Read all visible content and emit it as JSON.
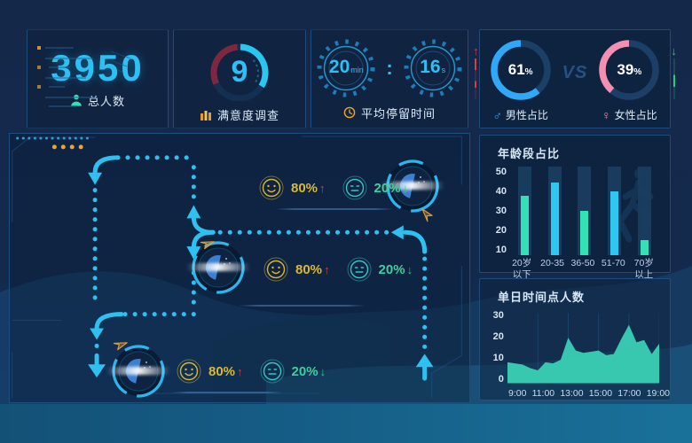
{
  "colors": {
    "accent_cyan": "#2cc0f4",
    "teal_green": "#35e0b5",
    "bar_blue": "#2fc6f2",
    "yellow": "#d9b832",
    "orange": "#f0a32f",
    "red": "#e23b3b",
    "green": "#2ecc71",
    "male_blue": "#2fa8f8",
    "female_pink": "#f48fb1",
    "area_fill": "#3ad0b5"
  },
  "kpi": {
    "total": {
      "value": "3950",
      "label": "总人数"
    },
    "satisfaction": {
      "value": "9",
      "label": "满意度调查"
    },
    "stay": {
      "min_value": "20",
      "min_unit": "min",
      "colon": ":",
      "sec_value": "16",
      "sec_unit": "s",
      "label": "平均停留时间"
    },
    "gender": {
      "male_value": 61,
      "male_display": "61",
      "female_value": 39,
      "female_display": "39",
      "percent": "%",
      "vs": "VS",
      "male_symbol": "♂",
      "female_symbol": "♀",
      "male_label": "男性占比",
      "female_label": "女性占比",
      "male_trend": "↑",
      "female_trend": "↓"
    }
  },
  "flow": {
    "rows": [
      {
        "happy_pct": "80%",
        "happy_trend": "↑",
        "calm_pct": "20%",
        "calm_trend": "↓"
      },
      {
        "happy_pct": "80%",
        "happy_trend": "↑",
        "calm_pct": "20%",
        "calm_trend": "↓"
      },
      {
        "happy_pct": "80%",
        "happy_trend": "↑",
        "calm_pct": "20%",
        "calm_trend": "↓"
      }
    ]
  },
  "chart_data": [
    {
      "type": "bar",
      "title": "年龄段占比",
      "categories": [
        "20岁\n以下",
        "20-35",
        "36-50",
        "51-70",
        "70岁\n以上"
      ],
      "values": [
        37,
        43,
        30,
        39,
        17
      ],
      "bar_colors": [
        "#35e0b5",
        "#2fc6f2",
        "#35e0b5",
        "#2fc6f2",
        "#35e0b5"
      ],
      "ylim": [
        10,
        50
      ],
      "yticks": [
        10,
        20,
        30,
        40,
        50
      ],
      "grid": false,
      "legend": "none"
    },
    {
      "type": "area",
      "title": "单日时间点人数",
      "x_ticks": [
        "9:00",
        "11:00",
        "13:00",
        "15:00",
        "17:00",
        "19:00"
      ],
      "values": [
        9,
        8.5,
        8,
        6.5,
        5.5,
        9,
        8.5,
        10,
        19.5,
        14,
        13,
        13.5,
        14,
        12,
        12.5,
        19,
        25,
        17.5,
        18.5,
        12.5,
        17
      ],
      "ylim": [
        0,
        30
      ],
      "yticks": [
        0,
        10,
        20,
        30
      ],
      "fill": "#3ad0b5",
      "grid": true,
      "legend": "none"
    }
  ]
}
